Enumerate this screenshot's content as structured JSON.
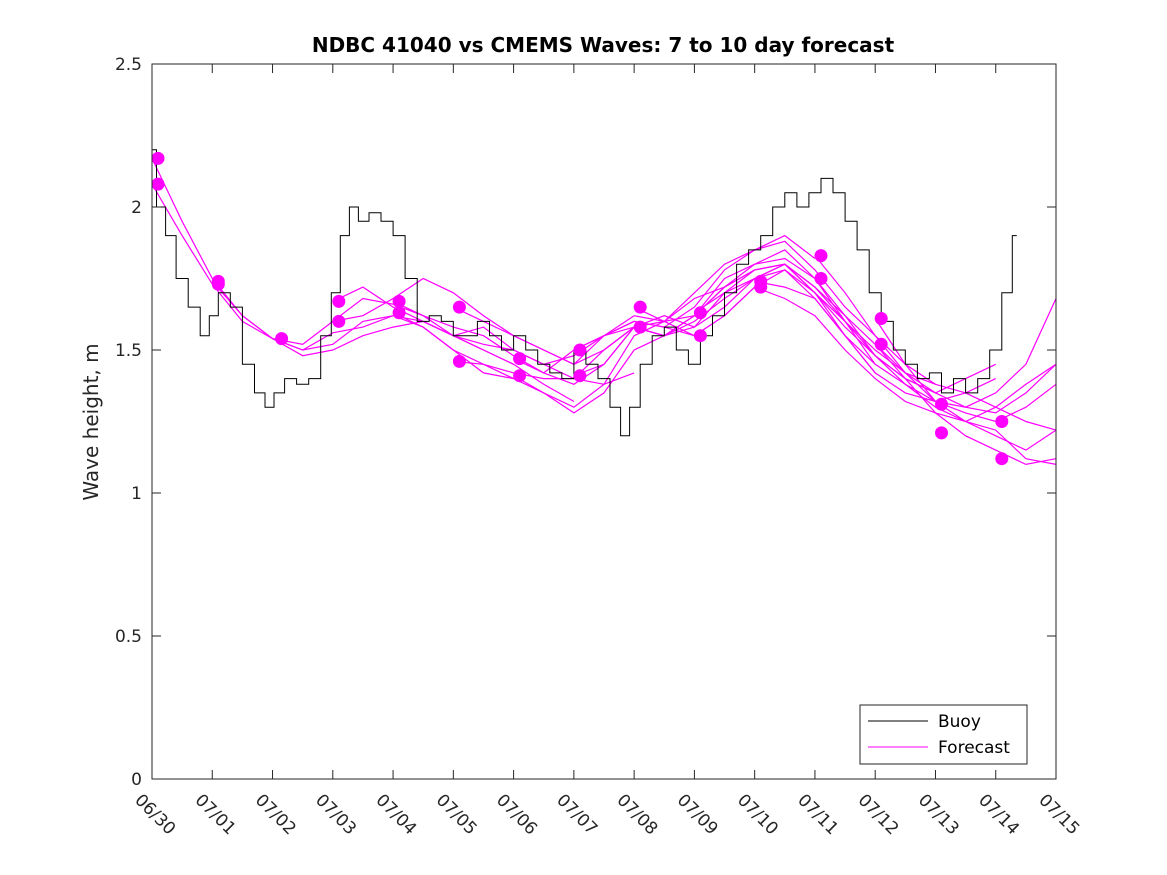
{
  "chart_data": {
    "type": "line",
    "title": "NDBC 41040 vs CMEMS Waves: 7 to 10 day forecast",
    "xlabel": "",
    "ylabel": "Wave height, m",
    "x_tick_labels": [
      "06/30",
      "07/01",
      "07/02",
      "07/03",
      "07/04",
      "07/05",
      "07/06",
      "07/07",
      "07/08",
      "07/09",
      "07/10",
      "07/11",
      "07/12",
      "07/13",
      "07/14",
      "07/15"
    ],
    "y_tick_labels": [
      "0",
      "0.5",
      "1",
      "1.5",
      "2",
      "2.5"
    ],
    "xlim_days": [
      0,
      15
    ],
    "ylim": [
      0,
      2.5
    ],
    "grid": false,
    "legend": {
      "position": "bottom-right",
      "entries": [
        "Buoy",
        "Forecast"
      ]
    },
    "colors": {
      "buoy": "#000000",
      "forecast": "#ff00ff",
      "axes": "#262626"
    },
    "series": [
      {
        "name": "Buoy",
        "x_days": [
          0.0,
          0.15,
          0.3,
          0.5,
          0.7,
          0.9,
          1.0,
          1.2,
          1.4,
          1.6,
          1.8,
          1.95,
          2.1,
          2.3,
          2.5,
          2.7,
          2.9,
          3.05,
          3.2,
          3.35,
          3.5,
          3.7,
          3.9,
          4.1,
          4.3,
          4.5,
          4.7,
          4.9,
          5.1,
          5.3,
          5.5,
          5.7,
          5.9,
          6.1,
          6.3,
          6.5,
          6.7,
          6.9,
          7.1,
          7.3,
          7.5,
          7.7,
          7.85,
          8.0,
          8.2,
          8.4,
          8.6,
          8.8,
          9.0,
          9.2,
          9.4,
          9.6,
          9.8,
          10.0,
          10.2,
          10.4,
          10.6,
          10.8,
          11.0,
          11.2,
          11.4,
          11.6,
          11.8,
          12.0,
          12.2,
          12.4,
          12.6,
          12.8,
          13.0,
          13.2,
          13.4,
          13.6,
          13.8,
          14.0,
          14.2,
          14.35
        ],
        "values": [
          2.2,
          2.0,
          1.9,
          1.75,
          1.65,
          1.55,
          1.62,
          1.7,
          1.65,
          1.45,
          1.35,
          1.3,
          1.35,
          1.4,
          1.38,
          1.4,
          1.55,
          1.7,
          1.9,
          2.0,
          1.95,
          1.98,
          1.95,
          1.9,
          1.75,
          1.6,
          1.62,
          1.6,
          1.55,
          1.55,
          1.6,
          1.55,
          1.5,
          1.55,
          1.5,
          1.45,
          1.42,
          1.4,
          1.5,
          1.45,
          1.4,
          1.3,
          1.2,
          1.3,
          1.45,
          1.55,
          1.58,
          1.5,
          1.45,
          1.55,
          1.62,
          1.7,
          1.8,
          1.85,
          1.9,
          2.0,
          2.05,
          2.0,
          2.05,
          2.1,
          2.05,
          1.95,
          1.85,
          1.7,
          1.6,
          1.5,
          1.45,
          1.4,
          1.42,
          1.35,
          1.4,
          1.35,
          1.4,
          1.5,
          1.7,
          1.9
        ]
      },
      {
        "name": "Forecast",
        "runs": [
          {
            "x_days": [
              0.0,
              0.5,
              1.0,
              1.5,
              2.0,
              2.5,
              3.0,
              3.5,
              4.0,
              4.5,
              5.0,
              5.5,
              6.0
            ],
            "values": [
              2.17,
              1.95,
              1.75,
              1.62,
              1.54,
              1.5,
              1.52,
              1.6,
              1.62,
              1.58,
              1.5,
              1.42,
              1.4
            ]
          },
          {
            "x_days": [
              0.0,
              0.5,
              1.0,
              1.5,
              2.0,
              2.5,
              3.0,
              3.5,
              4.0,
              4.5,
              5.0,
              5.5,
              6.0
            ],
            "values": [
              2.08,
              1.9,
              1.73,
              1.6,
              1.54,
              1.48,
              1.5,
              1.55,
              1.58,
              1.6,
              1.55,
              1.5,
              1.45
            ]
          },
          {
            "x_days": [
              1.0,
              1.5,
              2.0,
              2.5,
              3.0,
              3.5,
              4.0,
              4.5,
              5.0,
              5.5,
              6.0,
              6.5,
              7.0
            ],
            "values": [
              1.74,
              1.62,
              1.54,
              1.52,
              1.6,
              1.68,
              1.66,
              1.62,
              1.55,
              1.5,
              1.45,
              1.38,
              1.32
            ]
          },
          {
            "x_days": [
              2.0,
              2.5,
              3.0,
              3.5,
              4.0,
              4.5,
              5.0,
              5.5,
              6.0,
              6.5,
              7.0,
              7.5,
              8.0
            ],
            "values": [
              1.54,
              1.5,
              1.56,
              1.58,
              1.62,
              1.6,
              1.55,
              1.52,
              1.5,
              1.45,
              1.4,
              1.38,
              1.42
            ]
          },
          {
            "x_days": [
              3.0,
              3.5,
              4.0,
              4.5,
              5.0,
              5.5,
              6.0,
              6.5,
              7.0,
              7.5,
              8.0,
              8.5,
              9.0
            ],
            "values": [
              1.67,
              1.72,
              1.65,
              1.6,
              1.55,
              1.58,
              1.5,
              1.45,
              1.48,
              1.55,
              1.6,
              1.58,
              1.55
            ]
          },
          {
            "x_days": [
              3.0,
              3.5,
              4.0,
              4.5,
              5.0,
              5.5,
              6.0,
              6.5,
              7.0,
              7.5,
              8.0,
              8.5,
              9.0
            ],
            "values": [
              1.6,
              1.62,
              1.68,
              1.75,
              1.7,
              1.62,
              1.55,
              1.5,
              1.45,
              1.5,
              1.58,
              1.6,
              1.62
            ]
          },
          {
            "x_days": [
              4.0,
              4.5,
              5.0,
              5.5,
              6.0,
              6.5,
              7.0,
              7.5,
              8.0,
              8.5,
              9.0,
              9.5,
              10.0
            ],
            "values": [
              1.67,
              1.62,
              1.58,
              1.55,
              1.48,
              1.42,
              1.38,
              1.45,
              1.58,
              1.62,
              1.58,
              1.7,
              1.78
            ]
          },
          {
            "x_days": [
              4.0,
              4.5,
              5.0,
              5.5,
              6.0,
              6.5,
              7.0,
              7.5,
              8.0,
              8.5,
              9.0,
              9.5,
              10.0
            ],
            "values": [
              1.63,
              1.58,
              1.5,
              1.45,
              1.4,
              1.35,
              1.3,
              1.38,
              1.55,
              1.6,
              1.55,
              1.62,
              1.72
            ]
          },
          {
            "x_days": [
              5.0,
              5.5,
              6.0,
              6.5,
              7.0,
              7.5,
              8.0,
              8.5,
              9.0,
              9.5,
              10.0,
              10.5,
              11.0
            ],
            "values": [
              1.65,
              1.6,
              1.55,
              1.5,
              1.45,
              1.55,
              1.6,
              1.58,
              1.65,
              1.78,
              1.85,
              1.9,
              1.82
            ]
          },
          {
            "x_days": [
              5.0,
              5.5,
              6.0,
              6.5,
              7.0,
              7.5,
              8.0,
              8.5,
              9.0,
              9.5,
              10.0,
              10.5,
              11.0
            ],
            "values": [
              1.46,
              1.45,
              1.42,
              1.4,
              1.4,
              1.5,
              1.58,
              1.55,
              1.62,
              1.75,
              1.8,
              1.85,
              1.75
            ]
          },
          {
            "x_days": [
              6.0,
              6.5,
              7.0,
              7.5,
              8.0,
              8.5,
              9.0,
              9.5,
              10.0,
              10.5,
              11.0,
              11.5,
              12.0
            ],
            "values": [
              1.47,
              1.42,
              1.5,
              1.55,
              1.58,
              1.55,
              1.62,
              1.72,
              1.8,
              1.82,
              1.75,
              1.6,
              1.45
            ]
          },
          {
            "x_days": [
              6.0,
              6.5,
              7.0,
              7.5,
              8.0,
              8.5,
              9.0,
              9.5,
              10.0,
              10.5,
              11.0,
              11.5,
              12.0
            ],
            "values": [
              1.41,
              1.35,
              1.28,
              1.35,
              1.5,
              1.55,
              1.58,
              1.65,
              1.75,
              1.8,
              1.7,
              1.55,
              1.42
            ]
          },
          {
            "x_days": [
              7.0,
              7.5,
              8.0,
              8.5,
              9.0,
              9.5,
              10.0,
              10.5,
              11.0,
              11.5,
              12.0,
              12.5,
              13.0
            ],
            "values": [
              1.5,
              1.55,
              1.62,
              1.6,
              1.7,
              1.8,
              1.85,
              1.88,
              1.78,
              1.65,
              1.55,
              1.45,
              1.38
            ]
          },
          {
            "x_days": [
              7.0,
              7.5,
              8.0,
              8.5,
              9.0,
              9.5,
              10.0,
              10.5,
              11.0,
              11.5,
              12.0,
              12.5,
              13.0
            ],
            "values": [
              1.41,
              1.45,
              1.58,
              1.55,
              1.62,
              1.72,
              1.78,
              1.8,
              1.72,
              1.6,
              1.5,
              1.42,
              1.35
            ]
          },
          {
            "x_days": [
              8.0,
              8.5,
              9.0,
              9.5,
              10.0,
              10.5,
              11.0,
              11.5,
              12.0,
              12.5,
              13.0,
              13.5,
              14.0
            ],
            "values": [
              1.65,
              1.6,
              1.68,
              1.72,
              1.78,
              1.8,
              1.7,
              1.6,
              1.48,
              1.4,
              1.35,
              1.4,
              1.45
            ]
          },
          {
            "x_days": [
              8.0,
              8.5,
              9.0,
              9.5,
              10.0,
              10.5,
              11.0,
              11.5,
              12.0,
              12.5,
              13.0,
              13.5,
              14.0
            ],
            "values": [
              1.58,
              1.55,
              1.6,
              1.68,
              1.75,
              1.78,
              1.68,
              1.55,
              1.42,
              1.35,
              1.32,
              1.35,
              1.4
            ]
          },
          {
            "x_days": [
              9.0,
              9.5,
              10.0,
              10.5,
              11.0,
              11.5,
              12.0,
              12.5,
              13.0,
              13.5,
              14.0,
              14.5,
              15.0
            ],
            "values": [
              1.63,
              1.7,
              1.75,
              1.8,
              1.72,
              1.62,
              1.52,
              1.42,
              1.38,
              1.35,
              1.3,
              1.25,
              1.22
            ]
          },
          {
            "x_days": [
              9.0,
              9.5,
              10.0,
              10.5,
              11.0,
              11.5,
              12.0,
              12.5,
              13.0,
              13.5,
              14.0,
              14.5,
              15.0
            ],
            "values": [
              1.55,
              1.62,
              1.72,
              1.78,
              1.7,
              1.58,
              1.48,
              1.4,
              1.35,
              1.3,
              1.28,
              1.35,
              1.45
            ]
          },
          {
            "x_days": [
              10.0,
              10.5,
              11.0,
              11.5,
              12.0,
              12.5,
              13.0,
              13.5,
              14.0,
              14.5,
              15.0
            ],
            "values": [
              1.74,
              1.72,
              1.68,
              1.55,
              1.45,
              1.38,
              1.32,
              1.3,
              1.35,
              1.45,
              1.68
            ]
          },
          {
            "x_days": [
              10.0,
              10.5,
              11.0,
              11.5,
              12.0,
              12.5,
              13.0,
              13.5,
              14.0,
              14.5,
              15.0
            ],
            "values": [
              1.72,
              1.68,
              1.62,
              1.5,
              1.4,
              1.32,
              1.28,
              1.25,
              1.3,
              1.38,
              1.45
            ]
          },
          {
            "x_days": [
              11.0,
              11.5,
              12.0,
              12.5,
              13.0,
              13.5,
              14.0,
              14.5,
              15.0
            ],
            "values": [
              1.83,
              1.7,
              1.55,
              1.42,
              1.32,
              1.28,
              1.25,
              1.3,
              1.38
            ]
          },
          {
            "x_days": [
              11.0,
              11.5,
              12.0,
              12.5,
              13.0,
              13.5,
              14.0,
              14.5,
              15.0
            ],
            "values": [
              1.75,
              1.62,
              1.48,
              1.38,
              1.3,
              1.25,
              1.2,
              1.15,
              1.22
            ]
          },
          {
            "x_days": [
              12.0,
              12.5,
              13.0,
              13.5,
              14.0,
              14.5,
              15.0
            ],
            "values": [
              1.61,
              1.45,
              1.32,
              1.25,
              1.22,
              1.12,
              1.1
            ]
          },
          {
            "x_days": [
              12.0,
              12.5,
              13.0,
              13.5,
              14.0,
              14.5,
              15.0
            ],
            "values": [
              1.52,
              1.4,
              1.28,
              1.2,
              1.15,
              1.1,
              1.12
            ]
          }
        ],
        "markers": {
          "x_days": [
            0.1,
            0.1,
            1.1,
            1.1,
            2.15,
            3.1,
            3.1,
            4.1,
            4.1,
            5.1,
            5.1,
            6.1,
            6.1,
            7.1,
            7.1,
            8.1,
            8.1,
            9.1,
            9.1,
            10.1,
            10.1,
            11.1,
            11.1,
            12.1,
            12.1,
            13.1,
            13.1,
            14.1,
            14.1
          ],
          "values": [
            2.17,
            2.08,
            1.74,
            1.73,
            1.54,
            1.67,
            1.6,
            1.67,
            1.63,
            1.65,
            1.46,
            1.47,
            1.41,
            1.5,
            1.41,
            1.65,
            1.58,
            1.63,
            1.55,
            1.74,
            1.72,
            1.83,
            1.75,
            1.61,
            1.52,
            1.31,
            1.21,
            1.25,
            1.12
          ]
        }
      }
    ]
  }
}
